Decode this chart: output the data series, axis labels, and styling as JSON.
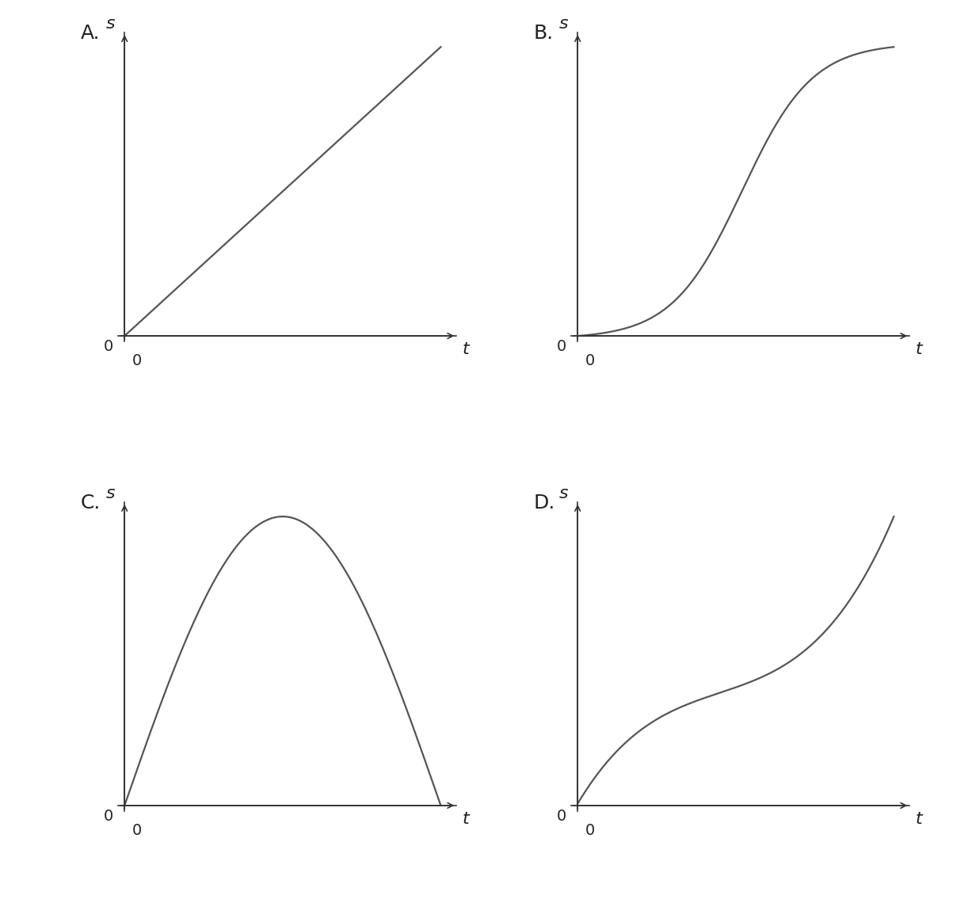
{
  "line_color": "#555555",
  "axis_color": "#333333",
  "background_color": "#ffffff",
  "label_color": "#222222",
  "label_fontsize": 16,
  "option_fontsize": 18,
  "tick_fontsize": 14,
  "line_width": 1.6,
  "axis_linewidth": 1.2,
  "xlabel": "t",
  "ylabel": "s",
  "options": [
    "A.",
    "B.",
    "C.",
    "D."
  ]
}
